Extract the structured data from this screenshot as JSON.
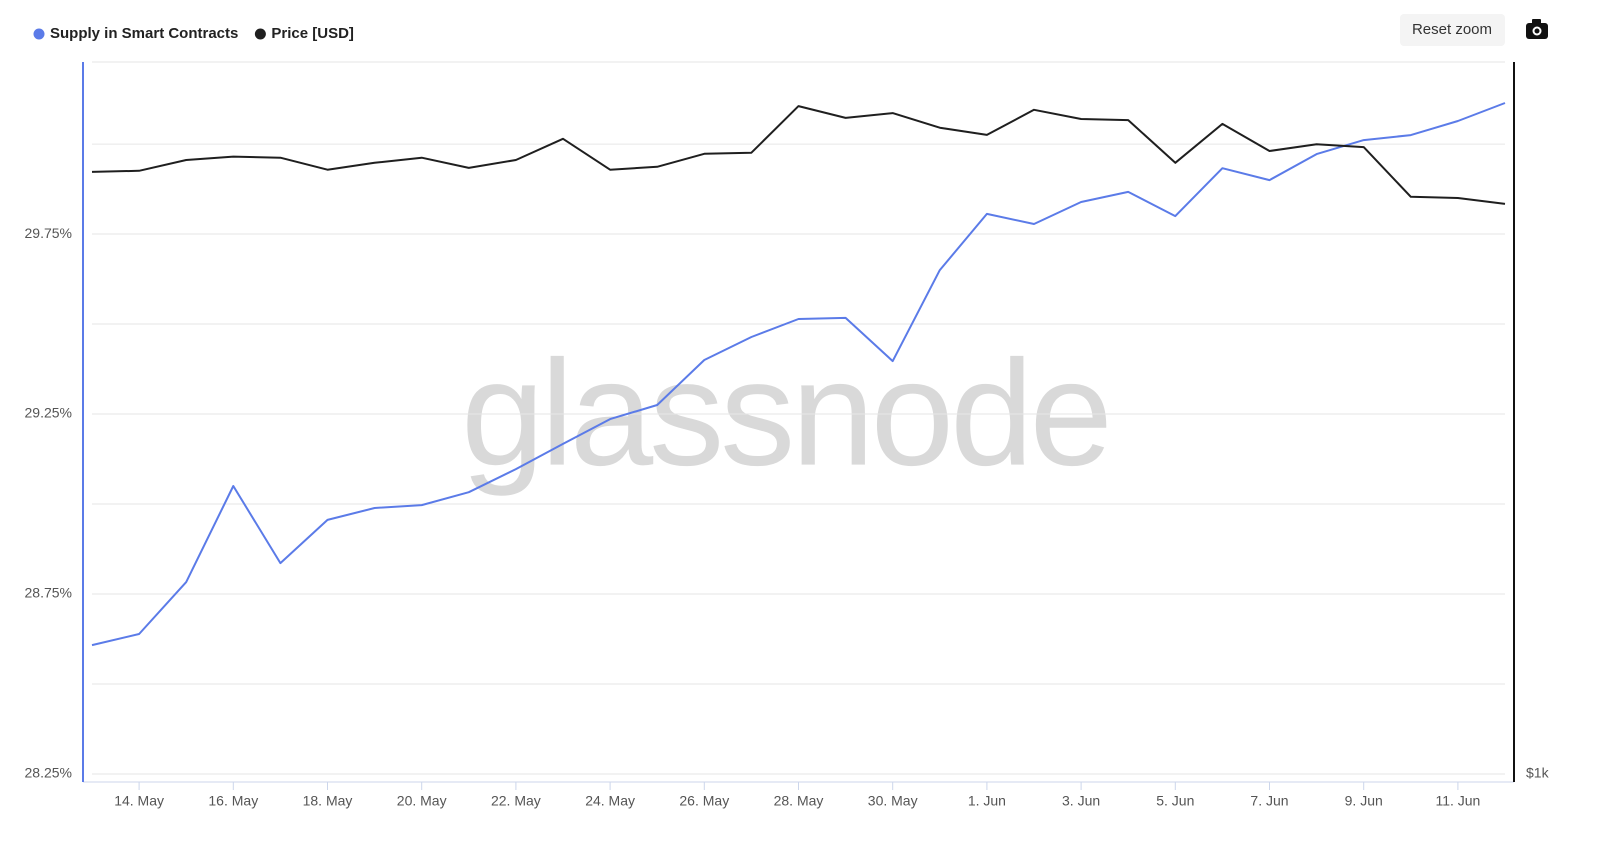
{
  "chart_data": {
    "type": "line",
    "watermark": "glassnode",
    "reset_button": "Reset zoom",
    "categories": [
      null,
      "14. May",
      null,
      "16. May",
      null,
      "18. May",
      null,
      "20. May",
      null,
      "22. May",
      null,
      "24. May",
      null,
      "26. May",
      null,
      "28. May",
      null,
      "30. May",
      null,
      "1. Jun",
      null,
      "3. Jun",
      null,
      "5. Jun",
      null,
      "7. Jun",
      null,
      "9. Jun",
      null,
      "11. Jun",
      null
    ],
    "series": [
      {
        "name": "Supply in Smart Contracts",
        "color": "#5b7be8",
        "axis": "y",
        "values": [
          28.608,
          28.639,
          28.783,
          29.05,
          28.836,
          28.956,
          28.989,
          28.997,
          29.033,
          29.097,
          29.167,
          29.236,
          29.275,
          29.4,
          29.464,
          29.514,
          29.517,
          29.397,
          29.65,
          29.806,
          29.778,
          29.839,
          29.867,
          29.8,
          29.933,
          29.9,
          29.972,
          30.011,
          30.025,
          30.064,
          30.114
        ]
      },
      {
        "name": "Price [USD]",
        "color": "#1f1f1f",
        "axis": "y2",
        "values": [
          1797,
          1799,
          1818,
          1824,
          1822,
          1801,
          1813,
          1822,
          1804,
          1818,
          1856,
          1801,
          1806,
          1829,
          1831,
          1916,
          1894,
          1903,
          1876,
          1863,
          1909,
          1892,
          1890,
          1813,
          1883,
          1834,
          1846,
          1841,
          1754,
          1752,
          1742
        ]
      }
    ],
    "ylim": [
      28.25,
      30.228
    ],
    "yticks": [
      {
        "value": 28.25,
        "label": "28.25%"
      },
      {
        "value": 28.75,
        "label": "28.75%"
      },
      {
        "value": 29.25,
        "label": "29.25%"
      },
      {
        "value": 29.75,
        "label": "29.75%"
      }
    ],
    "minor_yticks": [
      28.5,
      29,
      29.5,
      30
    ],
    "y2lim": [
      1000,
      2000
    ],
    "y2log": true,
    "y2ticks": [
      {
        "value": 1000,
        "label": "$1k"
      }
    ],
    "grid": true
  }
}
